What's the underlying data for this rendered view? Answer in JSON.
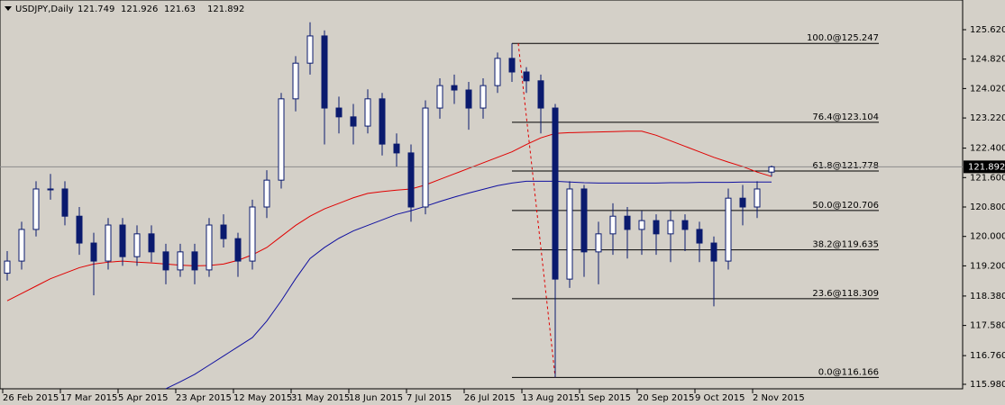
{
  "chart_data": {
    "type": "candlestick",
    "title": "USDJPY,Daily",
    "categories": [
      "26 Feb 2015",
      null,
      null,
      null,
      "17 Mar 2015",
      null,
      null,
      null,
      "5 Apr 2015",
      null,
      null,
      null,
      "23 Apr 2015",
      null,
      null,
      null,
      "12 May 2015",
      null,
      null,
      null,
      "31 May 2015",
      null,
      null,
      null,
      "18 Jun 2015",
      null,
      null,
      null,
      "7 Jul 2015",
      null,
      null,
      null,
      "26 Jul 2015",
      null,
      null,
      null,
      "13 Aug 2015",
      null,
      null,
      null,
      "1 Sep 2015",
      null,
      null,
      null,
      "20 Sep 2015",
      null,
      null,
      null,
      "9 Oct 2015",
      null,
      null,
      null,
      "2 Nov 2015",
      null
    ],
    "open": [
      119.0,
      119.33,
      120.19,
      121.29,
      121.29,
      120.55,
      119.82,
      119.33,
      120.31,
      119.45,
      120.07,
      119.58,
      119.09,
      119.58,
      119.09,
      120.31,
      119.94,
      119.33,
      120.8,
      121.53,
      123.74,
      124.71,
      125.45,
      123.49,
      123.25,
      123.0,
      123.74,
      122.51,
      122.27,
      120.8,
      123.49,
      124.1,
      123.98,
      123.49,
      124.1,
      124.84,
      124.47,
      124.23,
      123.49,
      118.84,
      121.29,
      119.58,
      120.07,
      120.55,
      120.19,
      120.43,
      120.07,
      120.43,
      120.19,
      119.82,
      119.33,
      121.04,
      120.8,
      121.749
    ],
    "high": [
      119.6,
      120.4,
      121.5,
      121.7,
      121.5,
      120.8,
      120.1,
      120.5,
      120.5,
      120.3,
      120.3,
      119.8,
      119.8,
      119.8,
      120.5,
      120.6,
      120.1,
      121.0,
      121.8,
      123.9,
      124.9,
      125.82,
      125.6,
      123.8,
      123.6,
      124.0,
      123.9,
      122.8,
      122.5,
      123.7,
      124.3,
      124.4,
      124.2,
      124.3,
      125.0,
      125.247,
      124.6,
      124.4,
      123.6,
      121.5,
      121.4,
      120.4,
      120.9,
      120.8,
      120.7,
      120.6,
      120.7,
      120.6,
      120.4,
      120.0,
      121.3,
      121.4,
      121.5,
      121.926
    ],
    "low": [
      118.8,
      119.1,
      120.0,
      121.0,
      120.3,
      119.5,
      118.4,
      119.1,
      119.2,
      119.2,
      119.3,
      118.7,
      118.9,
      118.7,
      118.9,
      119.7,
      118.9,
      119.1,
      120.5,
      121.3,
      123.4,
      124.4,
      122.5,
      122.8,
      122.5,
      122.8,
      122.2,
      121.9,
      120.4,
      120.6,
      123.2,
      123.6,
      122.9,
      123.2,
      123.9,
      124.2,
      123.9,
      122.8,
      116.166,
      118.6,
      118.9,
      118.7,
      119.5,
      119.4,
      119.5,
      119.5,
      119.3,
      119.6,
      119.3,
      118.1,
      119.1,
      120.3,
      120.5,
      121.63
    ],
    "close": [
      119.33,
      120.19,
      121.29,
      121.29,
      120.55,
      119.82,
      119.33,
      120.31,
      119.45,
      120.07,
      119.58,
      119.09,
      119.58,
      119.09,
      120.31,
      119.94,
      119.33,
      120.8,
      121.53,
      123.74,
      124.71,
      125.45,
      123.49,
      123.25,
      123.0,
      123.74,
      122.51,
      122.27,
      120.8,
      123.49,
      124.1,
      123.98,
      123.49,
      124.1,
      124.84,
      124.47,
      124.23,
      123.49,
      118.84,
      121.29,
      119.58,
      120.07,
      120.55,
      120.19,
      120.43,
      120.07,
      120.43,
      120.19,
      119.82,
      119.33,
      121.04,
      120.8,
      121.29,
      121.892
    ],
    "up_color": "#ffffff",
    "down_color": "#0a1a6e",
    "outline_color": "#0a1a6e",
    "lines": [
      {
        "color": "#e00000",
        "values": [
          118.25,
          118.45,
          118.65,
          118.85,
          119.0,
          119.15,
          119.25,
          119.3,
          119.33,
          119.3,
          119.28,
          119.25,
          119.22,
          119.2,
          119.21,
          119.25,
          119.35,
          119.5,
          119.7,
          120.0,
          120.3,
          120.55,
          120.75,
          120.9,
          121.05,
          121.17,
          121.22,
          121.26,
          121.29,
          121.4,
          121.55,
          121.7,
          121.85,
          122.0,
          122.15,
          122.3,
          122.5,
          122.68,
          122.8,
          122.82,
          122.83,
          122.84,
          122.85,
          122.86,
          122.86,
          122.75,
          122.6,
          122.45,
          122.3,
          122.15,
          122.02,
          121.9,
          121.75,
          121.63
        ]
      },
      {
        "color": "#1010a0",
        "values": [
          null,
          null,
          null,
          null,
          null,
          null,
          null,
          null,
          null,
          null,
          null,
          115.86,
          116.05,
          116.25,
          116.5,
          116.75,
          117.0,
          117.25,
          117.7,
          118.25,
          118.85,
          119.4,
          119.7,
          119.95,
          120.15,
          120.3,
          120.45,
          120.6,
          120.7,
          120.82,
          120.95,
          121.07,
          121.18,
          121.28,
          121.38,
          121.45,
          121.5,
          121.5,
          121.5,
          121.48,
          121.46,
          121.45,
          121.45,
          121.45,
          121.45,
          121.45,
          121.46,
          121.46,
          121.47,
          121.47,
          121.47,
          121.48,
          121.48,
          121.48
        ]
      }
    ],
    "fib_levels": [
      {
        "value": 125.247,
        "label": "100.0@125.247"
      },
      {
        "value": 123.104,
        "label": "76.4@123.104"
      },
      {
        "value": 121.778,
        "label": "61.8@121.778"
      },
      {
        "value": 120.706,
        "label": "50.0@120.706"
      },
      {
        "value": 119.635,
        "label": "38.2@119.635"
      },
      {
        "value": 118.309,
        "label": "23.6@118.309"
      },
      {
        "value": 116.166,
        "label": "0.0@116.166"
      }
    ],
    "fib_color": "#000000",
    "trend_color": "#e00000",
    "price_line_color": "#8c8c8c",
    "ylim": [
      115.858,
      126.427
    ],
    "yticks": [
      {
        "value": 125.62,
        "label": "125.620"
      },
      {
        "value": 124.82,
        "label": "124.820"
      },
      {
        "value": 124.02,
        "label": "124.020"
      },
      {
        "value": 123.22,
        "label": "123.220"
      },
      {
        "value": 122.4,
        "label": "122.400"
      },
      {
        "value": 121.6,
        "label": "121.600"
      },
      {
        "value": 120.8,
        "label": "120.800"
      },
      {
        "value": 120.0,
        "label": "120.000"
      },
      {
        "value": 119.2,
        "label": "119.200"
      },
      {
        "value": 118.38,
        "label": "118.380"
      },
      {
        "value": 117.58,
        "label": "117.580"
      },
      {
        "value": 116.76,
        "label": "116.760"
      },
      {
        "value": 115.98,
        "label": "115.980"
      }
    ]
  }
}
